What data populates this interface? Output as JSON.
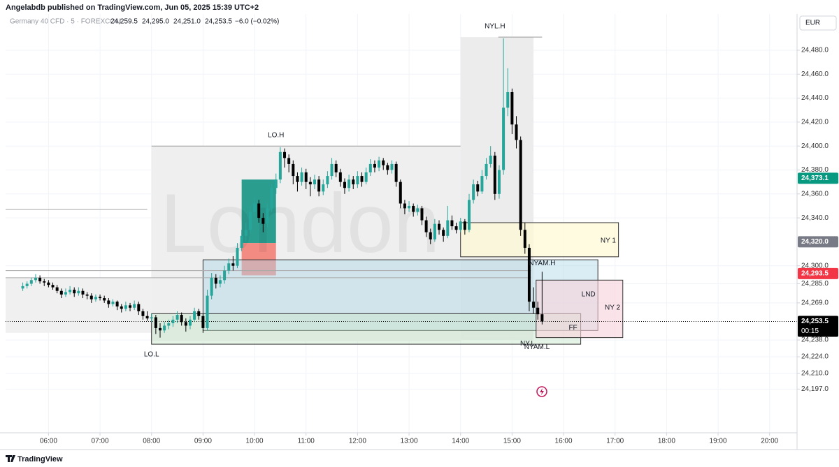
{
  "header": {
    "published": "Angelabdb published on TradingView.com, Jun 05, 2025 15:39 UTC+2",
    "symbol": "Germany 40 CFD · 5 · FOREXCOM",
    "open": "24,259.5",
    "high": "24,295.0",
    "low": "24,251.0",
    "close": "24,253.5",
    "change": "−6.0 (−0.02%)"
  },
  "currency": "EUR",
  "footer": "TradingView",
  "chart_data": {
    "type": "candlestick",
    "watermark": "London",
    "bull_color": "#26a69a",
    "bear_color": "#000000",
    "xlim": [
      310,
      1232
    ],
    "ylim": [
      24160.5,
      24510.3
    ],
    "grid": true,
    "xticks": [
      {
        "value": 360,
        "label": "06:00"
      },
      {
        "value": 420,
        "label": "07:00"
      },
      {
        "value": 480,
        "label": "08:00"
      },
      {
        "value": 540,
        "label": "09:00"
      },
      {
        "value": 600,
        "label": "10:00"
      },
      {
        "value": 660,
        "label": "11:00"
      },
      {
        "value": 720,
        "label": "12:00"
      },
      {
        "value": 780,
        "label": "13:00"
      },
      {
        "value": 840,
        "label": "14:00"
      },
      {
        "value": 900,
        "label": "15:00"
      },
      {
        "value": 960,
        "label": "16:00"
      },
      {
        "value": 1020,
        "label": "17:00"
      },
      {
        "value": 1080,
        "label": "18:00"
      },
      {
        "value": 1140,
        "label": "19:00"
      },
      {
        "value": 1200,
        "label": "20:00"
      }
    ],
    "yticks": [
      {
        "value": 24480,
        "label": "24,480.0"
      },
      {
        "value": 24460,
        "label": "24,460.0"
      },
      {
        "value": 24440,
        "label": "24,440.0"
      },
      {
        "value": 24420,
        "label": "24,420.0"
      },
      {
        "value": 24400,
        "label": "24,400.0"
      },
      {
        "value": 24380,
        "label": "24,380.0"
      },
      {
        "value": 24360,
        "label": "24,360.0"
      },
      {
        "value": 24340,
        "label": "24,340.0"
      },
      {
        "value": 24300,
        "label": "24,300.0"
      },
      {
        "value": 24285,
        "label": "24,285.0"
      },
      {
        "value": 24269,
        "label": "24,269.0"
      },
      {
        "value": 24238,
        "label": "24,238.0"
      },
      {
        "value": 24224,
        "label": "24,224.0"
      },
      {
        "value": 24210,
        "label": "24,210.0"
      },
      {
        "value": 24197,
        "label": "24,197.0"
      }
    ],
    "price_labels": [
      {
        "value": 24373.1,
        "label": "24,373.1",
        "color": "#089981"
      },
      {
        "value": 24320.0,
        "label": "24,320.0",
        "color": "#787b86"
      },
      {
        "value": 24293.5,
        "label": "24,293.5",
        "color": "#f23645"
      },
      {
        "value": 24253.5,
        "label": "24,253.5",
        "color": "#000000",
        "sub": "00:15"
      }
    ],
    "zones": [
      {
        "t0": 310,
        "t1": 480,
        "y0": 24244,
        "y1": 24290,
        "fill": "#f0f0f0",
        "stroke": "none"
      },
      {
        "t0": 480,
        "t1": 840,
        "y0": 24237,
        "y1": 24400,
        "fill": "#efefef",
        "stroke": "none"
      },
      {
        "t0": 840,
        "t1": 925,
        "y0": 24238,
        "y1": 24491,
        "fill": "#ececec",
        "stroke": "none"
      },
      {
        "t0": 585,
        "t1": 625,
        "y0": 24319,
        "y1": 24372,
        "fill": "#2a9d8f",
        "stroke": "none"
      },
      {
        "t0": 585,
        "t1": 625,
        "y0": 24292,
        "y1": 24319,
        "fill": "#f28b82",
        "stroke": "none"
      },
      {
        "t0": 540,
        "t1": 1000,
        "y0": 24246,
        "y1": 24305,
        "fill": "rgba(173,216,230,0.45)",
        "stroke": "#333333"
      },
      {
        "t0": 480,
        "t1": 980,
        "y0": 24234.5,
        "y1": 24260,
        "fill": "rgba(200,230,201,0.45)",
        "stroke": "#333333"
      },
      {
        "t0": 840,
        "t1": 1024,
        "y0": 24307.5,
        "y1": 24336,
        "fill": "rgba(255,249,215,0.75)",
        "stroke": "#333333"
      },
      {
        "t0": 928,
        "t1": 1029,
        "y0": 24240,
        "y1": 24288,
        "fill": "rgba(248,210,218,0.6)",
        "stroke": "#333333"
      }
    ],
    "lines": [
      {
        "t0": 480,
        "t1": 840,
        "price": 24400,
        "color": "#999999",
        "dash": "none"
      },
      {
        "t0": 884,
        "t1": 935,
        "price": 24491,
        "color": "#999999",
        "dash": "none"
      },
      {
        "t0": 310,
        "t1": 475,
        "price": 24347,
        "color": "#aaaaaa",
        "dash": "none"
      },
      {
        "t0": 310,
        "t1": 922,
        "price": 24296,
        "color": "#aaaaaa",
        "dash": "none"
      },
      {
        "t0": 310,
        "t1": 922,
        "price": 24290,
        "color": "#aaaaaa",
        "dash": "none"
      },
      {
        "t0": 310,
        "t1": 1232,
        "price": 24253.5,
        "color": "#000000",
        "dash": "1,2"
      }
    ],
    "annotations": [
      {
        "text": "NYL.H",
        "t": 880,
        "price": 24500,
        "color": "#555555"
      },
      {
        "text": "LO.H",
        "t": 625,
        "price": 24409,
        "color": "#555555"
      },
      {
        "text": "LO.L",
        "t": 480,
        "price": 24226,
        "color": "#555555"
      },
      {
        "text": "NY 1",
        "t": 1012,
        "price": 24321,
        "color": "#999999"
      },
      {
        "text": "NYAM.H",
        "t": 935,
        "price": 24302,
        "color": "#555555"
      },
      {
        "text": "LND",
        "t": 989,
        "price": 24276,
        "color": "#999999"
      },
      {
        "text": "NY 2",
        "t": 1017,
        "price": 24265,
        "color": "#999999"
      },
      {
        "text": "FF",
        "t": 971,
        "price": 24248,
        "color": "#bbbbbb"
      },
      {
        "text": "NY.L",
        "t": 918,
        "price": 24235,
        "color": "#555555"
      },
      {
        "text": "NYAM.L",
        "t": 929,
        "price": 24232,
        "color": "#555555"
      }
    ],
    "x": [
      330,
      335,
      340,
      345,
      350,
      355,
      360,
      365,
      370,
      375,
      380,
      385,
      390,
      395,
      400,
      405,
      410,
      415,
      420,
      425,
      430,
      435,
      440,
      445,
      450,
      455,
      460,
      465,
      470,
      475,
      480,
      485,
      490,
      495,
      500,
      505,
      510,
      515,
      520,
      525,
      530,
      535,
      540,
      545,
      550,
      555,
      560,
      565,
      570,
      575,
      580,
      585,
      590,
      595,
      600,
      605,
      610,
      615,
      620,
      625,
      630,
      635,
      640,
      645,
      650,
      655,
      660,
      665,
      670,
      675,
      680,
      685,
      690,
      695,
      700,
      705,
      710,
      715,
      720,
      725,
      730,
      735,
      740,
      745,
      750,
      755,
      760,
      765,
      770,
      775,
      780,
      785,
      790,
      795,
      800,
      805,
      810,
      815,
      820,
      825,
      830,
      835,
      840,
      845,
      850,
      855,
      860,
      865,
      870,
      875,
      880,
      885,
      890,
      895,
      900,
      905,
      910,
      915,
      920,
      925,
      930,
      935
    ],
    "candles": [
      [
        24281,
        24286,
        24279,
        24283
      ],
      [
        24283,
        24287,
        24281,
        24285
      ],
      [
        24285,
        24290,
        24283,
        24288
      ],
      [
        24288,
        24293,
        24286,
        24290
      ],
      [
        24290,
        24292,
        24285,
        24287
      ],
      [
        24287,
        24289,
        24283,
        24286
      ],
      [
        24286,
        24288,
        24282,
        24284
      ],
      [
        24284,
        24286,
        24280,
        24282
      ],
      [
        24282,
        24284,
        24277,
        24279
      ],
      [
        24279,
        24281,
        24273,
        24276
      ],
      [
        24276,
        24281,
        24274,
        24278
      ],
      [
        24278,
        24283,
        24276,
        24280
      ],
      [
        24280,
        24282,
        24274,
        24277
      ],
      [
        24277,
        24282,
        24275,
        24279
      ],
      [
        24279,
        24281,
        24273,
        24276
      ],
      [
        24276,
        24278,
        24272,
        24275
      ],
      [
        24275,
        24277,
        24269,
        24272
      ],
      [
        24272,
        24276,
        24270,
        24274
      ],
      [
        24274,
        24276,
        24271,
        24273
      ],
      [
        24273,
        24275,
        24269,
        24271
      ],
      [
        24271,
        24273,
        24265,
        24268
      ],
      [
        24268,
        24272,
        24266,
        24270
      ],
      [
        24270,
        24271,
        24263,
        24266
      ],
      [
        24266,
        24268,
        24261,
        24264
      ],
      [
        24264,
        24270,
        24262,
        24267
      ],
      [
        24267,
        24269,
        24262,
        24265
      ],
      [
        24265,
        24271,
        24263,
        24268
      ],
      [
        24268,
        24270,
        24259,
        24262
      ],
      [
        24262,
        24264,
        24255,
        24258
      ],
      [
        24258,
        24262,
        24254,
        24256
      ],
      [
        24256,
        24260,
        24253,
        24257
      ],
      [
        24257,
        24259,
        24243,
        24248
      ],
      [
        24248,
        24252,
        24240,
        24246
      ],
      [
        24246,
        24253,
        24244,
        24250
      ],
      [
        24250,
        24255,
        24247,
        24252
      ],
      [
        24252,
        24258,
        24249,
        24255
      ],
      [
        24255,
        24262,
        24252,
        24259
      ],
      [
        24259,
        24261,
        24250,
        24253
      ],
      [
        24253,
        24256,
        24245,
        24250
      ],
      [
        24250,
        24258,
        24247,
        24255
      ],
      [
        24255,
        24265,
        24253,
        24262
      ],
      [
        24262,
        24264,
        24255,
        24258
      ],
      [
        24258,
        24260,
        24244,
        24248
      ],
      [
        24248,
        24280,
        24246,
        24275
      ],
      [
        24275,
        24294,
        24272,
        24290
      ],
      [
        24290,
        24293,
        24281,
        24285
      ],
      [
        24285,
        24292,
        24282,
        24288
      ],
      [
        24288,
        24300,
        24285,
        24296
      ],
      [
        24296,
        24306,
        24293,
        24302
      ],
      [
        24302,
        24308,
        24296,
        24300
      ],
      [
        24300,
        24319,
        24298,
        24315
      ],
      [
        24315,
        24330,
        24312,
        24325
      ],
      [
        24325,
        24336,
        24320,
        24330
      ],
      [
        24330,
        24350,
        24327,
        24345
      ],
      [
        24345,
        24357,
        24341,
        24352
      ],
      [
        24352,
        24355,
        24336,
        24340
      ],
      [
        24340,
        24344,
        24328,
        24335
      ],
      [
        24335,
        24352,
        24332,
        24348
      ],
      [
        24348,
        24368,
        24345,
        24365
      ],
      [
        24365,
        24377,
        24360,
        24372
      ],
      [
        24372,
        24399,
        24369,
        24395
      ],
      [
        24395,
        24398,
        24382,
        24390
      ],
      [
        24390,
        24393,
        24378,
        24385
      ],
      [
        24385,
        24388,
        24368,
        24375
      ],
      [
        24375,
        24378,
        24362,
        24370
      ],
      [
        24370,
        24382,
        24367,
        24378
      ],
      [
        24378,
        24381,
        24364,
        24370
      ],
      [
        24370,
        24374,
        24358,
        24368
      ],
      [
        24368,
        24376,
        24364,
        24372
      ],
      [
        24372,
        24375,
        24358,
        24362
      ],
      [
        24362,
        24372,
        24359,
        24368
      ],
      [
        24368,
        24379,
        24365,
        24375
      ],
      [
        24375,
        24390,
        24372,
        24385
      ],
      [
        24385,
        24388,
        24374,
        24378
      ],
      [
        24378,
        24381,
        24366,
        24370
      ],
      [
        24370,
        24373,
        24360,
        24365
      ],
      [
        24365,
        24376,
        24362,
        24372
      ],
      [
        24372,
        24375,
        24364,
        24368
      ],
      [
        24368,
        24379,
        24365,
        24375
      ],
      [
        24375,
        24378,
        24366,
        24370
      ],
      [
        24370,
        24382,
        24368,
        24378
      ],
      [
        24378,
        24389,
        24375,
        24385
      ],
      [
        24385,
        24388,
        24378,
        24382
      ],
      [
        24382,
        24391,
        24379,
        24388
      ],
      [
        24388,
        24390,
        24380,
        24384
      ],
      [
        24384,
        24386,
        24376,
        24380
      ],
      [
        24380,
        24388,
        24377,
        24385
      ],
      [
        24385,
        24387,
        24366,
        24370
      ],
      [
        24370,
        24372,
        24348,
        24352
      ],
      [
        24352,
        24355,
        24343,
        24348
      ],
      [
        24348,
        24354,
        24345,
        24350
      ],
      [
        24350,
        24352,
        24341,
        24345
      ],
      [
        24345,
        24351,
        24342,
        24348
      ],
      [
        24348,
        24350,
        24334,
        24338
      ],
      [
        24338,
        24341,
        24324,
        24328
      ],
      [
        24328,
        24331,
        24318,
        24322
      ],
      [
        24322,
        24339,
        24320,
        24335
      ],
      [
        24335,
        24338,
        24326,
        24330
      ],
      [
        24330,
        24332,
        24320,
        24325
      ],
      [
        24325,
        24350,
        24323,
        24338
      ],
      [
        24338,
        24342,
        24330,
        24333
      ],
      [
        24333,
        24336,
        24327,
        24330
      ],
      [
        24330,
        24340,
        24328,
        24337
      ],
      [
        24337,
        24339,
        24326,
        24330
      ],
      [
        24330,
        24360,
        24328,
        24355
      ],
      [
        24355,
        24372,
        24352,
        24368
      ],
      [
        24368,
        24371,
        24358,
        24362
      ],
      [
        24362,
        24380,
        24360,
        24375
      ],
      [
        24375,
        24390,
        24372,
        24385
      ],
      [
        24385,
        24400,
        24382,
        24392
      ],
      [
        24392,
        24395,
        24355,
        24360
      ],
      [
        24360,
        24384,
        24356,
        24380
      ],
      [
        24380,
        24490,
        24376,
        24432
      ],
      [
        24432,
        24465,
        24425,
        24445
      ],
      [
        24445,
        24448,
        24410,
        24418
      ],
      [
        24418,
        24425,
        24398,
        24405
      ],
      [
        24405,
        24408,
        24325,
        24330
      ],
      [
        24330,
        24336,
        24310,
        24315
      ],
      [
        24315,
        24318,
        24262,
        24270
      ],
      [
        24270,
        24282,
        24260,
        24265
      ],
      [
        24265,
        24270,
        24255,
        24259.5
      ],
      [
        24259.5,
        24295,
        24251,
        24253.5
      ]
    ]
  }
}
